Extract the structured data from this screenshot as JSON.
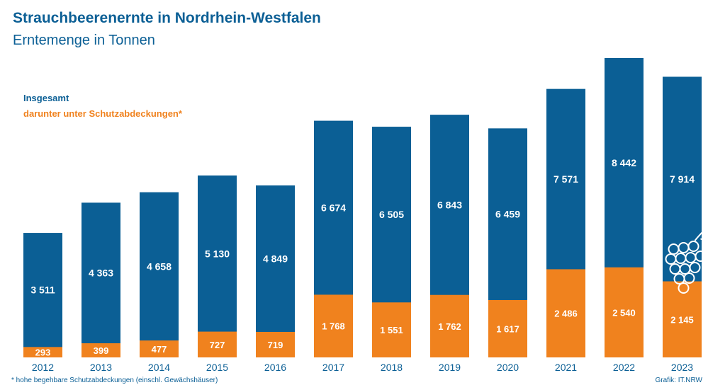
{
  "header": {
    "title": "Strauchbeerenernte in Nordrhein-Westfalen",
    "subtitle": "Erntemenge in Tonnen"
  },
  "legend": {
    "total": "Insgesamt",
    "covered": "darunter unter Schutzabdeckungen*"
  },
  "footer": {
    "footnote": "* hohe begehbare Schutzabdeckungen (einschl. Gewächshäuser)",
    "credit": "Grafik: IT.NRW"
  },
  "colors": {
    "total": "#0b5f95",
    "covered": "#f0821e",
    "axis_text": "#0b5f95"
  },
  "chart_data": {
    "type": "bar",
    "stacked": "overlay",
    "categories": [
      "2012",
      "2013",
      "2014",
      "2015",
      "2016",
      "2017",
      "2018",
      "2019",
      "2020",
      "2021",
      "2022",
      "2023"
    ],
    "series": [
      {
        "name": "Insgesamt",
        "values": [
          3511,
          4363,
          4658,
          5130,
          4849,
          6674,
          6505,
          6843,
          6459,
          7571,
          8442,
          7914
        ],
        "labels": [
          "3 511",
          "4 363",
          "4 658",
          "5 130",
          "4 849",
          "6 674",
          "6 505",
          "6 843",
          "6 459",
          "7 571",
          "8 442",
          "7 914"
        ]
      },
      {
        "name": "darunter unter Schutzabdeckungen*",
        "values": [
          293,
          399,
          477,
          727,
          719,
          1768,
          1551,
          1762,
          1617,
          2486,
          2540,
          2145
        ],
        "labels": [
          "293",
          "399",
          "477",
          "727",
          "719",
          "1 768",
          "1 551",
          "1 762",
          "1 617",
          "2 486",
          "2 540",
          "2 145"
        ]
      }
    ],
    "ylim": [
      0,
      8442
    ],
    "grid": false,
    "legend_position": "top-left"
  }
}
